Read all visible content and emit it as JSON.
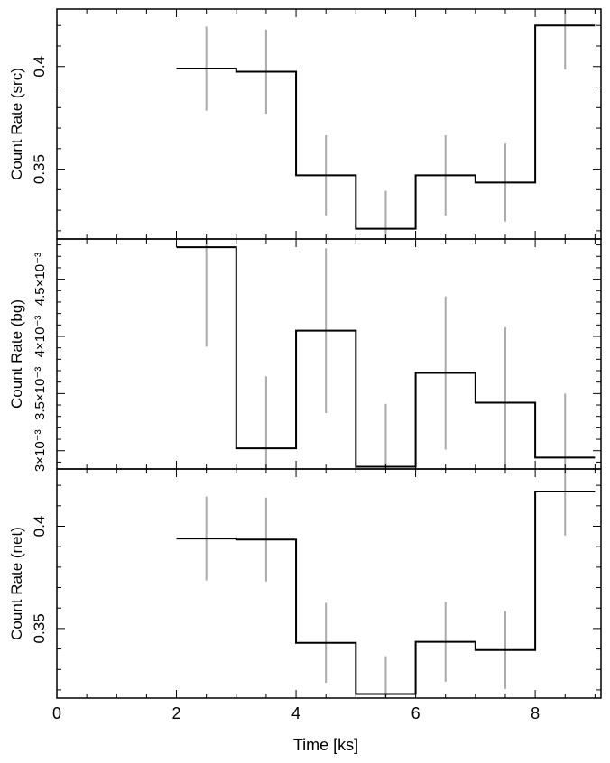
{
  "chart_data": {
    "type": "line",
    "style": "step with error bars, three stacked panels sharing x axis",
    "xlabel": "Time [ks]",
    "xlim": [
      0,
      9.1
    ],
    "xticks": [
      0,
      2,
      4,
      6,
      8
    ],
    "xtick_labels": [
      "0",
      "2",
      "4",
      "6",
      "8"
    ],
    "bins": [
      [
        2,
        3
      ],
      [
        3,
        4
      ],
      [
        4,
        5
      ],
      [
        5,
        6
      ],
      [
        6,
        7
      ],
      [
        7,
        8
      ],
      [
        8,
        9
      ]
    ],
    "bin_centers": [
      2.5,
      3.5,
      4.5,
      5.5,
      6.5,
      7.5,
      8.5
    ],
    "colors": {
      "step": "#000000",
      "error": "#aaaaaa"
    },
    "panels": [
      {
        "ylabel": "Count Rate (src)",
        "ylim": [
          0.316,
          0.428
        ],
        "yticks": [
          0.35,
          0.4
        ],
        "ytick_labels": [
          "0.35",
          "0.4"
        ],
        "values": [
          0.399,
          0.3975,
          0.347,
          0.321,
          0.347,
          0.3435,
          0.42
        ],
        "errors": [
          0.0205,
          0.0205,
          0.0195,
          0.0185,
          0.0195,
          0.019,
          0.0215
        ]
      },
      {
        "ylabel": "Count Rate (bg)",
        "ylim": [
          0.00284,
          0.004852
        ],
        "yticks": [
          0.003,
          0.0035,
          0.004,
          0.0045
        ],
        "ytick_labels": [
          "3×10⁻³",
          "3.5×10⁻³",
          "4×10⁻³",
          "4.5×10⁻³"
        ],
        "values": [
          0.00478,
          0.00302,
          0.00405,
          0.00286,
          0.00368,
          0.00342,
          0.00294
        ],
        "errors": [
          0.00087,
          0.00063,
          0.00072,
          0.00055,
          0.00067,
          0.00066,
          0.00056
        ]
      },
      {
        "ylabel": "Count Rate (net)",
        "ylim": [
          0.316,
          0.428
        ],
        "yticks": [
          0.35,
          0.4
        ],
        "ytick_labels": [
          "0.35",
          "0.4"
        ],
        "values": [
          0.394,
          0.3935,
          0.343,
          0.318,
          0.3435,
          0.3395,
          0.417
        ],
        "errors": [
          0.0205,
          0.0205,
          0.0195,
          0.0185,
          0.0195,
          0.019,
          0.0215
        ]
      }
    ]
  }
}
